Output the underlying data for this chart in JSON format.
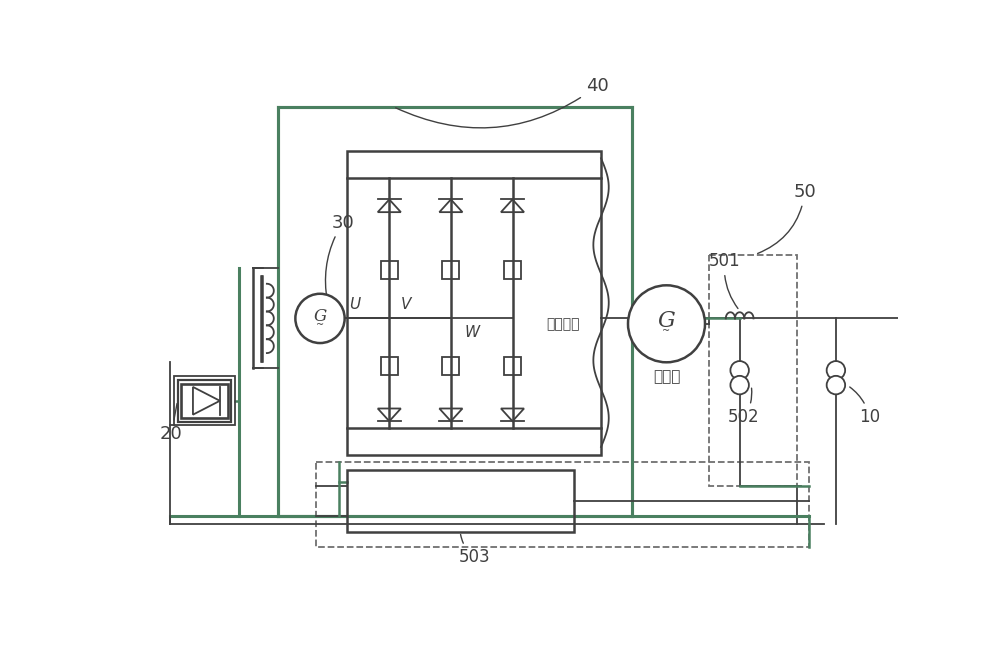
{
  "bg_color": "#ffffff",
  "line_color": "#404040",
  "green_color": "#4a8060",
  "dashed_color": "#707070",
  "label_40": "40",
  "label_30": "30",
  "label_20": "20",
  "label_50": "50",
  "label_501": "501",
  "label_502": "502",
  "label_503": "503",
  "label_10": "10",
  "label_U": "U",
  "label_V": "V",
  "label_W": "W",
  "label_rotor": "转子绕组",
  "label_generator": "发电机"
}
